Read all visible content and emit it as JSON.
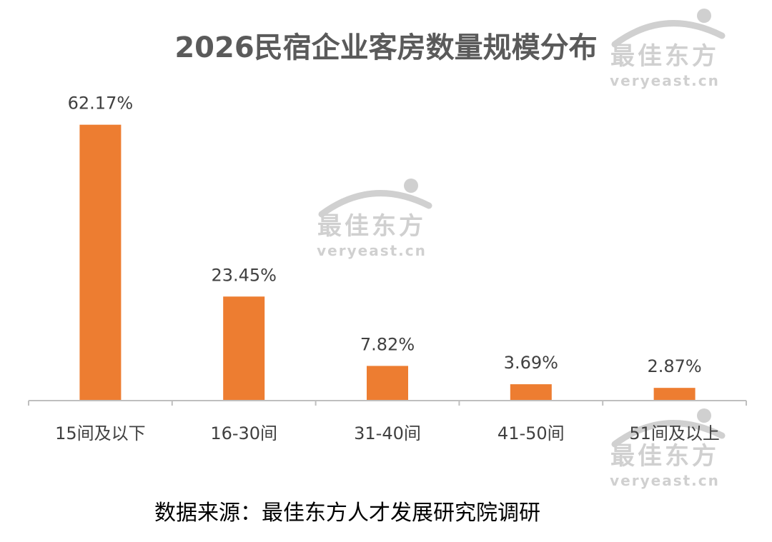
{
  "chart_data": {
    "type": "bar",
    "title": "2026民宿企业客房数量规模分布",
    "categories": [
      "15间及以下",
      "16-30间",
      "31-40间",
      "41-50间",
      "51间及以上"
    ],
    "values": [
      62.17,
      23.45,
      7.82,
      3.69,
      2.87
    ],
    "data_labels": [
      "62.17%",
      "23.45%",
      "7.82%",
      "3.69%",
      "2.87%"
    ],
    "unit": "%",
    "ylim": [
      0,
      70
    ],
    "grid": false,
    "bar_color": "#ed7d31",
    "axis_color": "#bfbfbf"
  },
  "source": "数据来源：最佳东方人才发展研究院调研",
  "watermark": {
    "cn": "最佳东方",
    "en": "veryeast.cn",
    "color": "#d0d0d0"
  }
}
